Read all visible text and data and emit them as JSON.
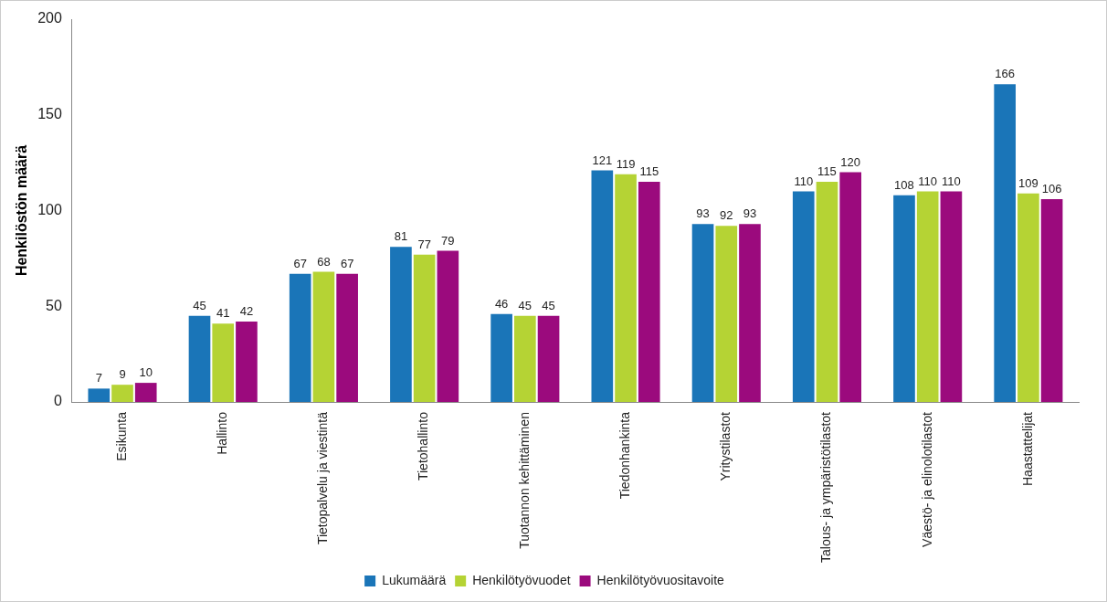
{
  "chart_data": {
    "type": "bar",
    "ylabel": "Henkilöstön määrä",
    "categories": [
      "Esikunta",
      "Hallinto",
      "Tietopalvelu ja viestintä",
      "Tietohallinto",
      "Tuotannon kehittäminen",
      "Tiedonhankinta",
      "Yritystilastot",
      "Talous- ja ympäristötilastot",
      "Väestö- ja elinolotilastot",
      "Haastattelijat"
    ],
    "series": [
      {
        "name": "Lukumäärä",
        "color": "#1a75b8",
        "values": [
          7,
          45,
          67,
          81,
          46,
          121,
          93,
          110,
          108,
          166
        ]
      },
      {
        "name": "Henkilötyövuodet",
        "color": "#b5d334",
        "values": [
          9,
          41,
          68,
          77,
          45,
          119,
          92,
          115,
          110,
          109
        ]
      },
      {
        "name": "Henkilötyövuositavoite",
        "color": "#9b0a7d",
        "values": [
          10,
          42,
          67,
          79,
          45,
          115,
          93,
          120,
          110,
          106
        ]
      }
    ],
    "ylim": [
      0,
      200
    ],
    "yticks": [
      0,
      50,
      100,
      150,
      200
    ],
    "grid": false,
    "legend": "bottom",
    "data_labels": true
  }
}
